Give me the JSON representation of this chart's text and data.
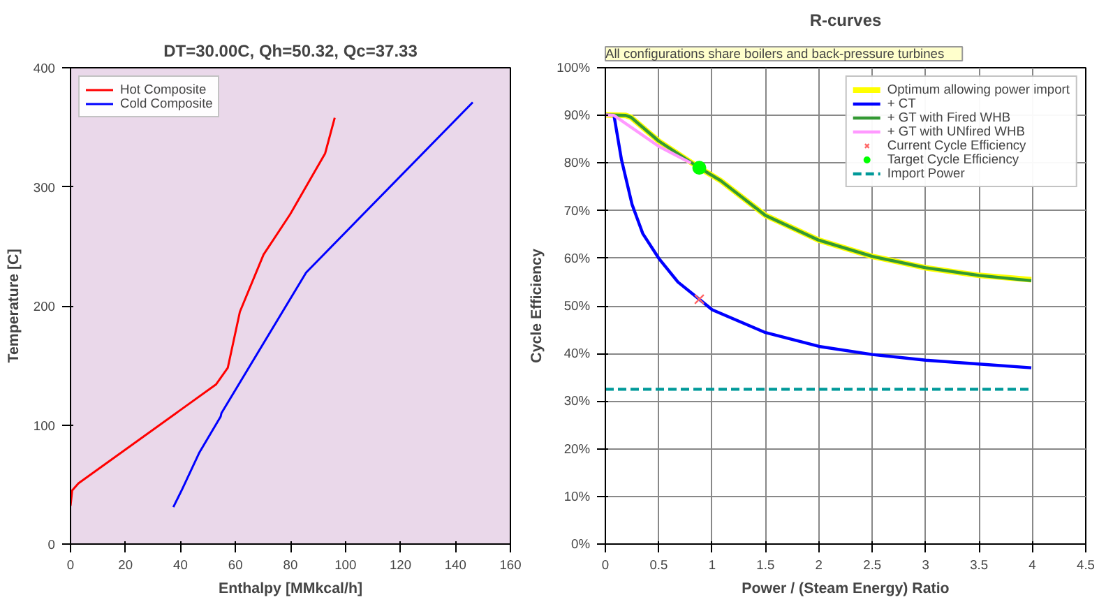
{
  "chart_data": [
    {
      "type": "line",
      "title": "DT=30.00C, Qh=50.32, Qc=37.33",
      "xlabel": "Enthalpy [MMkcal/h]",
      "ylabel": "Temperature [C]",
      "xlim": [
        0,
        160
      ],
      "xticks": [
        0,
        20,
        40,
        60,
        80,
        100,
        120,
        140,
        160
      ],
      "ylim": [
        0,
        400
      ],
      "yticks": [
        0,
        100,
        200,
        300,
        400
      ],
      "grid": false,
      "legend": "top left",
      "marker": "none",
      "series": [
        {
          "name": "Hot Composite",
          "color": "#ff0000",
          "x": [
            0,
            0.6,
            2.9,
            52.9,
            57.2,
            61.6,
            70.2,
            79.9,
            92.6,
            96.1
          ],
          "values": [
            32,
            45,
            51,
            134,
            148,
            195,
            243,
            277,
            328,
            358
          ]
        },
        {
          "name": "Cold Composite",
          "color": "#0000ff",
          "x": [
            37.4,
            40.6,
            46.9,
            54.6,
            54.9,
            85.7,
            146.3
          ],
          "values": [
            31,
            46,
            77,
            107,
            110,
            228,
            371
          ]
        }
      ]
    },
    {
      "type": "line",
      "title": "R-curves",
      "xlabel": "Power / (Steam Energy) Ratio",
      "ylabel": "Cycle Efficiency",
      "annotations": [
        "All configurations  share  boilers  and  back-pressure  turbines"
      ],
      "xlim": [
        0,
        4.5
      ],
      "xticks": [
        0,
        0.5,
        1,
        1.5,
        2,
        2.5,
        3,
        3.5,
        4,
        4.5
      ],
      "ylim": [
        0,
        100
      ],
      "yticks": [
        {
          "value": 0,
          "label": "0%"
        },
        {
          "value": 10,
          "label": "10%"
        },
        {
          "value": 20,
          "label": "20%"
        },
        {
          "value": 30,
          "label": "30%"
        },
        {
          "value": 40,
          "label": "40%"
        },
        {
          "value": 50,
          "label": "50%"
        },
        {
          "value": 60,
          "label": "60%"
        },
        {
          "value": 70,
          "label": "70%"
        },
        {
          "value": 80,
          "label": "80%"
        },
        {
          "value": 90,
          "label": "90%"
        },
        {
          "value": 100,
          "label": "100%"
        }
      ],
      "grid": true,
      "legend": "top right",
      "series": [
        {
          "name": "Optimum allowing power import",
          "color": "#ffff00",
          "x": [
            0,
            0.19,
            0.24,
            0.5,
            0.88,
            1.08,
            1.5,
            2.0,
            2.5,
            3.0,
            3.5,
            3.99
          ],
          "values": [
            90.1,
            90.0,
            89.6,
            84.6,
            79.0,
            76.3,
            69.0,
            63.8,
            60.4,
            58.0,
            56.4,
            55.5
          ]
        },
        {
          "name": "+ CT",
          "color": "#0000ff",
          "x": [
            0.08,
            0.15,
            0.25,
            0.35,
            0.5,
            0.68,
            0.88,
            1.0,
            1.5,
            2.0,
            2.5,
            3.0,
            3.5,
            3.99
          ],
          "values": [
            90.1,
            80.8,
            71.3,
            65.2,
            60.0,
            55.0,
            51.4,
            49.2,
            44.4,
            41.5,
            39.8,
            38.6,
            37.8,
            37.0
          ]
        },
        {
          "name": "+ GT with Fired WHB",
          "color": "#339933",
          "x": [
            0,
            0.19,
            0.24,
            0.5,
            0.88,
            1.08,
            1.5,
            2.0,
            2.5,
            3.0,
            3.5,
            3.99
          ],
          "values": [
            90.1,
            90.0,
            89.6,
            84.6,
            79.0,
            76.3,
            69.0,
            63.8,
            60.4,
            58.0,
            56.4,
            55.3
          ]
        },
        {
          "name": "+ GT with UNfired WHB",
          "color": "#ff99ff",
          "x": [
            0,
            0.08,
            0.5,
            0.8
          ],
          "values": [
            90.1,
            90.0,
            83.5,
            80.0
          ]
        },
        {
          "name": "Current Cycle Efficiency",
          "type": "scatter",
          "marker": "cross",
          "color": "#ff6666",
          "x": [
            0.88
          ],
          "values": [
            51.4
          ]
        },
        {
          "name": "Target Cycle Efficiency",
          "type": "scatter",
          "marker": "circle",
          "color": "#00ff00",
          "x": [
            0.88
          ],
          "values": [
            79.0
          ]
        },
        {
          "name": "Import Power",
          "color": "#009999",
          "line_style": "dashed",
          "x": [
            0,
            4.0
          ],
          "values": [
            32.5,
            32.5
          ]
        }
      ]
    }
  ]
}
